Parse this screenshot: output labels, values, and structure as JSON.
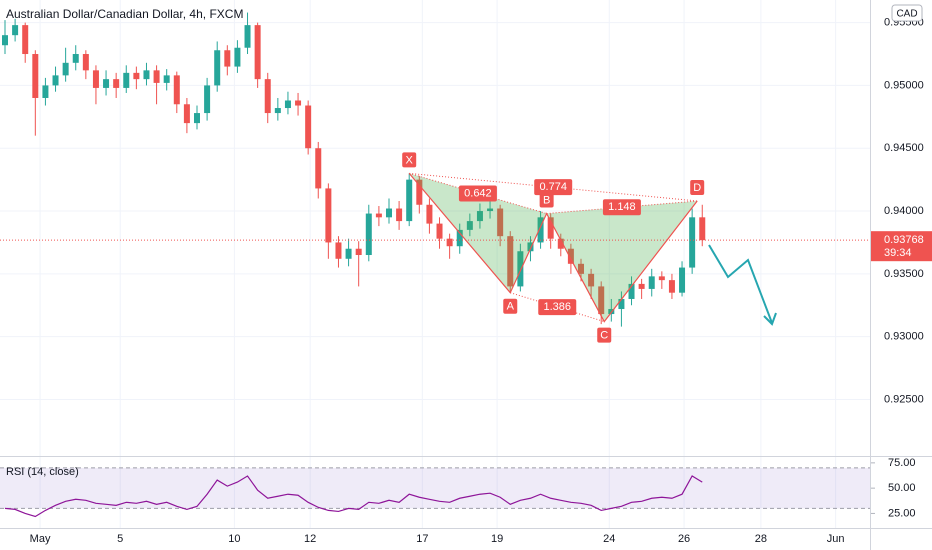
{
  "chart_data": {
    "type": "candlestick",
    "title": "Australian Dollar/Canadian Dollar, 4h, FXCM",
    "currency": "CAD",
    "up_color": "#26a69a",
    "down_color": "#ef5350",
    "xlim": [
      -0.495,
      85.6
    ],
    "xticks": [
      {
        "value": 3.47,
        "label": "May"
      },
      {
        "value": 11.4,
        "label": "5"
      },
      {
        "value": 22.7,
        "label": "10"
      },
      {
        "value": 30.2,
        "label": "12"
      },
      {
        "value": 41.3,
        "label": "17"
      },
      {
        "value": 48.7,
        "label": "19"
      },
      {
        "value": 59.8,
        "label": "24"
      },
      {
        "value": 67.2,
        "label": "26"
      },
      {
        "value": 74.8,
        "label": "28"
      },
      {
        "value": 82.2,
        "label": "Jun"
      }
    ],
    "ylim": [
      0.9205,
      0.9568
    ],
    "yticks": [
      {
        "value": 0.955,
        "label": "0.95500"
      },
      {
        "value": 0.95,
        "label": "0.95000"
      },
      {
        "value": 0.945,
        "label": "0.94500"
      },
      {
        "value": 0.94,
        "label": "0.94000"
      },
      {
        "value": 0.935,
        "label": "0.93500"
      },
      {
        "value": 0.93,
        "label": "0.93000"
      },
      {
        "value": 0.925,
        "label": "0.92500"
      }
    ],
    "grid": true,
    "last_price": {
      "value": 0.93768,
      "label": "0.93768"
    },
    "countdown": "39:34",
    "open": [
      0.9532,
      0.954,
      0.9548,
      0.9525,
      0.949,
      0.95,
      0.9508,
      0.9518,
      0.9525,
      0.9512,
      0.9498,
      0.9505,
      0.9498,
      0.951,
      0.9505,
      0.9512,
      0.9502,
      0.9508,
      0.9485,
      0.947,
      0.9478,
      0.95,
      0.9528,
      0.9515,
      0.953,
      0.9548,
      0.9505,
      0.9478,
      0.9482,
      0.9488,
      0.9484,
      0.945,
      0.9418,
      0.9375,
      0.9362,
      0.937,
      0.9365,
      0.9398,
      0.9395,
      0.9402,
      0.9392,
      0.9425,
      0.9405,
      0.939,
      0.9378,
      0.9372,
      0.9385,
      0.9392,
      0.94,
      0.9402,
      0.938,
      0.934,
      0.9368,
      0.9375,
      0.9395,
      0.9378,
      0.937,
      0.9358,
      0.935,
      0.934,
      0.9318,
      0.9322,
      0.933,
      0.9342,
      0.9338,
      0.9348,
      0.9345,
      0.9335,
      0.9355,
      0.9395
    ],
    "high": [
      0.9552,
      0.9553,
      0.955,
      0.9528,
      0.9506,
      0.9515,
      0.953,
      0.9532,
      0.9528,
      0.9516,
      0.9512,
      0.951,
      0.9516,
      0.9515,
      0.9518,
      0.9516,
      0.9513,
      0.9511,
      0.949,
      0.9484,
      0.9506,
      0.9535,
      0.9532,
      0.9536,
      0.9558,
      0.955,
      0.951,
      0.949,
      0.9495,
      0.9494,
      0.9488,
      0.9455,
      0.9422,
      0.938,
      0.9378,
      0.9376,
      0.9405,
      0.9404,
      0.941,
      0.9408,
      0.943,
      0.9428,
      0.941,
      0.9395,
      0.9382,
      0.939,
      0.9398,
      0.9406,
      0.9408,
      0.9405,
      0.9384,
      0.9374,
      0.938,
      0.94,
      0.9398,
      0.9382,
      0.9374,
      0.9362,
      0.9354,
      0.9344,
      0.933,
      0.9336,
      0.9348,
      0.9346,
      0.9354,
      0.9352,
      0.935,
      0.936,
      0.9402,
      0.9405
    ],
    "low": [
      0.9525,
      0.9535,
      0.9518,
      0.946,
      0.9484,
      0.9495,
      0.9503,
      0.9512,
      0.9505,
      0.9485,
      0.9492,
      0.949,
      0.9494,
      0.9497,
      0.95,
      0.9485,
      0.9496,
      0.9478,
      0.9462,
      0.9465,
      0.9472,
      0.9495,
      0.9508,
      0.951,
      0.9525,
      0.9498,
      0.947,
      0.9472,
      0.9477,
      0.9476,
      0.9445,
      0.941,
      0.9362,
      0.9355,
      0.9356,
      0.934,
      0.936,
      0.9388,
      0.939,
      0.9385,
      0.9388,
      0.9398,
      0.9382,
      0.937,
      0.9362,
      0.9366,
      0.938,
      0.9386,
      0.9394,
      0.9372,
      0.9335,
      0.9336,
      0.936,
      0.937,
      0.937,
      0.9364,
      0.935,
      0.9344,
      0.933,
      0.931,
      0.9312,
      0.9308,
      0.9325,
      0.933,
      0.9332,
      0.9338,
      0.933,
      0.9332,
      0.935,
      0.9372
    ],
    "close": [
      0.954,
      0.9548,
      0.9525,
      0.949,
      0.95,
      0.9508,
      0.9518,
      0.9525,
      0.9512,
      0.9498,
      0.9505,
      0.9498,
      0.951,
      0.9505,
      0.9512,
      0.9502,
      0.9508,
      0.9485,
      0.947,
      0.9478,
      0.95,
      0.9528,
      0.9515,
      0.953,
      0.9548,
      0.9505,
      0.9478,
      0.9482,
      0.9488,
      0.9484,
      0.945,
      0.9418,
      0.9375,
      0.9362,
      0.937,
      0.9365,
      0.9398,
      0.9395,
      0.9402,
      0.9392,
      0.9425,
      0.9405,
      0.939,
      0.9378,
      0.9372,
      0.9385,
      0.9392,
      0.94,
      0.9402,
      0.938,
      0.934,
      0.9368,
      0.9375,
      0.9395,
      0.9378,
      0.937,
      0.9358,
      0.935,
      0.934,
      0.9318,
      0.9322,
      0.933,
      0.9342,
      0.9338,
      0.9348,
      0.9345,
      0.9335,
      0.9355,
      0.9395,
      0.93768
    ],
    "pattern": {
      "points": [
        {
          "label": "X",
          "x": 40,
          "y": 0.943
        },
        {
          "label": "A",
          "x": 50,
          "y": 0.9335
        },
        {
          "label": "B",
          "x": 53.6,
          "y": 0.9398
        },
        {
          "label": "C",
          "x": 59.3,
          "y": 0.9312
        },
        {
          "label": "D",
          "x": 68.5,
          "y": 0.9408
        }
      ],
      "ratios": [
        0.642,
        0.774,
        1.386,
        1.148
      ]
    },
    "rsi": {
      "title": "RSI (14, close)",
      "color": "#8e1599",
      "ylim": [
        10.6,
        80.8
      ],
      "yticks": [
        {
          "value": 75,
          "label": "75.00"
        },
        {
          "value": 50,
          "label": "50.00"
        },
        {
          "value": 25,
          "label": "25.00"
        }
      ],
      "bands": [
        30,
        70
      ],
      "values": [
        30,
        29,
        25,
        22,
        28,
        33,
        37,
        39,
        38,
        35,
        34,
        33,
        36,
        35,
        37,
        34,
        36,
        32,
        29,
        32,
        44,
        58,
        52,
        56,
        62,
        48,
        40,
        42,
        44,
        43,
        36,
        31,
        28,
        27,
        30,
        29,
        36,
        35,
        38,
        36,
        44,
        41,
        39,
        37,
        36,
        40,
        42,
        44,
        45,
        41,
        34,
        38,
        40,
        44,
        40,
        38,
        36,
        35,
        33,
        28,
        30,
        32,
        36,
        37,
        40,
        41,
        40,
        44,
        62,
        56
      ]
    }
  }
}
